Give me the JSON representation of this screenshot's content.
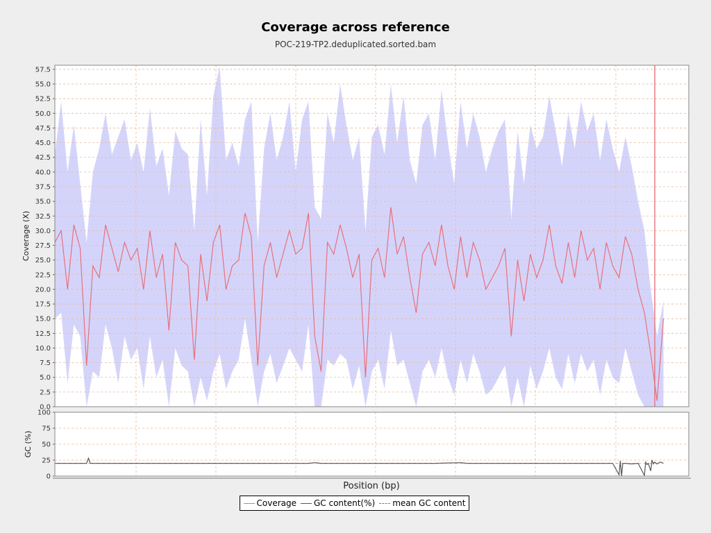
{
  "title": "Coverage across reference",
  "subtitle": "POC-219-TP2.deduplicated.sorted.bam",
  "colors": {
    "coverage": "#e8707a",
    "coverage_band": "#d4d4fb",
    "gc": "#555555",
    "mean_gc": "#e0505a",
    "grid": "#e8b99b",
    "background": "#eeeeee",
    "plot_background": "#ffffff"
  },
  "legend": {
    "coverage": "Coverage",
    "gc": "GC content(%)",
    "mean_gc": "mean GC content"
  },
  "chart_data": [
    {
      "type": "line",
      "name": "coverage-panel",
      "ylabel": "Coverage (X)",
      "ylim": [
        0,
        58.2
      ],
      "yticks": [
        "0.0",
        "2.5",
        "5.0",
        "7.5",
        "10.0",
        "12.5",
        "15.0",
        "17.5",
        "20.0",
        "22.5",
        "25.0",
        "27.5",
        "30.0",
        "32.5",
        "35.0",
        "37.5",
        "40.0",
        "42.5",
        "45.0",
        "47.5",
        "50.0",
        "52.5",
        "55.0",
        "57.5"
      ],
      "xlim": [
        0,
        100
      ],
      "grid": true,
      "series": [
        {
          "name": "Coverage",
          "style": "line",
          "x": [
            0,
            1,
            2,
            3,
            4,
            5,
            6,
            7,
            8,
            9,
            10,
            11,
            12,
            13,
            14,
            15,
            16,
            17,
            18,
            19,
            20,
            21,
            22,
            23,
            24,
            25,
            26,
            27,
            28,
            29,
            30,
            31,
            32,
            33,
            34,
            35,
            36,
            37,
            38,
            39,
            40,
            41,
            42,
            43,
            44,
            45,
            46,
            47,
            48,
            49,
            50,
            51,
            52,
            53,
            54,
            55,
            56,
            57,
            58,
            59,
            60,
            61,
            62,
            63,
            64,
            65,
            66,
            67,
            68,
            69,
            70,
            71,
            72,
            73,
            74,
            75,
            76,
            77,
            78,
            79,
            80,
            81,
            82,
            83,
            84,
            85,
            86,
            87,
            88,
            89,
            90,
            91,
            92,
            93,
            94,
            95,
            96
          ],
          "values": [
            28,
            30,
            20,
            31,
            27,
            7,
            24,
            22,
            31,
            27,
            23,
            28,
            25,
            27,
            20,
            30,
            22,
            26,
            13,
            28,
            25,
            24,
            8,
            26,
            18,
            28,
            31,
            20,
            24,
            25,
            33,
            29,
            7,
            24,
            28,
            22,
            26,
            30,
            26,
            27,
            33,
            12,
            6,
            28,
            26,
            31,
            27,
            22,
            26,
            5,
            25,
            27,
            22,
            34,
            26,
            29,
            22,
            16,
            26,
            28,
            24,
            31,
            24,
            20,
            29,
            22,
            28,
            25,
            20,
            22,
            24,
            27,
            12,
            25,
            18,
            26,
            22,
            25,
            31,
            24,
            21,
            28,
            22,
            30,
            25,
            27,
            20,
            28,
            24,
            22,
            29,
            26,
            20,
            16,
            9,
            1,
            15
          ]
        },
        {
          "name": "coverage-band-upper",
          "style": "band-upper",
          "x": [
            0,
            1,
            2,
            3,
            4,
            5,
            6,
            7,
            8,
            9,
            10,
            11,
            12,
            13,
            14,
            15,
            16,
            17,
            18,
            19,
            20,
            21,
            22,
            23,
            24,
            25,
            26,
            27,
            28,
            29,
            30,
            31,
            32,
            33,
            34,
            35,
            36,
            37,
            38,
            39,
            40,
            41,
            42,
            43,
            44,
            45,
            46,
            47,
            48,
            49,
            50,
            51,
            52,
            53,
            54,
            55,
            56,
            57,
            58,
            59,
            60,
            61,
            62,
            63,
            64,
            65,
            66,
            67,
            68,
            69,
            70,
            71,
            72,
            73,
            74,
            75,
            76,
            77,
            78,
            79,
            80,
            81,
            82,
            83,
            84,
            85,
            86,
            87,
            88,
            89,
            90,
            91,
            92,
            93,
            94,
            95,
            96
          ],
          "values": [
            43,
            52,
            40,
            48,
            38,
            28,
            40,
            44,
            50,
            43,
            46,
            49,
            42,
            45,
            40,
            51,
            41,
            44,
            36,
            47,
            44,
            43,
            30,
            49,
            36,
            53,
            58,
            42,
            45,
            41,
            49,
            52,
            28,
            44,
            50,
            42,
            46,
            52,
            40,
            49,
            52,
            34,
            32,
            50,
            45,
            55,
            48,
            42,
            46,
            30,
            46,
            48,
            43,
            55,
            45,
            53,
            42,
            38,
            48,
            50,
            42,
            54,
            45,
            38,
            52,
            44,
            50,
            46,
            40,
            44,
            47,
            49,
            32,
            47,
            38,
            48,
            44,
            46,
            53,
            47,
            41,
            50,
            44,
            52,
            47,
            50,
            42,
            49,
            44,
            40,
            46,
            41,
            35,
            30,
            20,
            12,
            18
          ]
        },
        {
          "name": "coverage-band-lower",
          "style": "band-lower",
          "x": [
            0,
            1,
            2,
            3,
            4,
            5,
            6,
            7,
            8,
            9,
            10,
            11,
            12,
            13,
            14,
            15,
            16,
            17,
            18,
            19,
            20,
            21,
            22,
            23,
            24,
            25,
            26,
            27,
            28,
            29,
            30,
            31,
            32,
            33,
            34,
            35,
            36,
            37,
            38,
            39,
            40,
            41,
            42,
            43,
            44,
            45,
            46,
            47,
            48,
            49,
            50,
            51,
            52,
            53,
            54,
            55,
            56,
            57,
            58,
            59,
            60,
            61,
            62,
            63,
            64,
            65,
            66,
            67,
            68,
            69,
            70,
            71,
            72,
            73,
            74,
            75,
            76,
            77,
            78,
            79,
            80,
            81,
            82,
            83,
            84,
            85,
            86,
            87,
            88,
            89,
            90,
            91,
            92,
            93,
            94,
            95,
            96
          ],
          "values": [
            15,
            16,
            4,
            14,
            12,
            0,
            6,
            5,
            14,
            10,
            4,
            12,
            8,
            10,
            3,
            12,
            5,
            8,
            0,
            10,
            7,
            6,
            0,
            5,
            1,
            6,
            9,
            3,
            6,
            8,
            15,
            8,
            0,
            6,
            9,
            4,
            7,
            10,
            8,
            6,
            14,
            0,
            0,
            8,
            7,
            9,
            8,
            3,
            7,
            0,
            6,
            8,
            3,
            13,
            7,
            8,
            4,
            0,
            6,
            8,
            5,
            10,
            5,
            2,
            8,
            4,
            9,
            6,
            2,
            3,
            5,
            7,
            0,
            5,
            0,
            7,
            3,
            6,
            10,
            5,
            3,
            9,
            4,
            9,
            6,
            8,
            2,
            8,
            5,
            4,
            10,
            6,
            2,
            0,
            0,
            0,
            0
          ]
        }
      ]
    },
    {
      "type": "line",
      "name": "gc-panel",
      "ylabel": "GC (%)",
      "ylim": [
        0,
        100
      ],
      "yticks": [
        "0",
        "25",
        "50",
        "75",
        "100"
      ],
      "xlim": [
        0,
        100
      ],
      "xlabel": "Position (bp)",
      "grid": true,
      "series": [
        {
          "name": "GC content(%)",
          "x": [
            0,
            5,
            5.3,
            5.6,
            10,
            20,
            30,
            40,
            41,
            42,
            50,
            60,
            64,
            65,
            70,
            80,
            88,
            89,
            89.2,
            89.4,
            89.6,
            90,
            91,
            92,
            93,
            93.2,
            93.4,
            93.6,
            94,
            94.2,
            94.4,
            94.6,
            95,
            95.5,
            96
          ],
          "values": [
            20,
            20,
            28,
            20,
            20,
            20,
            20,
            20,
            21,
            20,
            20,
            20,
            21,
            20,
            20,
            20,
            20,
            2,
            24,
            0,
            20,
            20,
            19,
            20,
            1,
            22,
            18,
            20,
            8,
            25,
            19,
            22,
            19,
            22,
            20
          ]
        }
      ]
    }
  ]
}
